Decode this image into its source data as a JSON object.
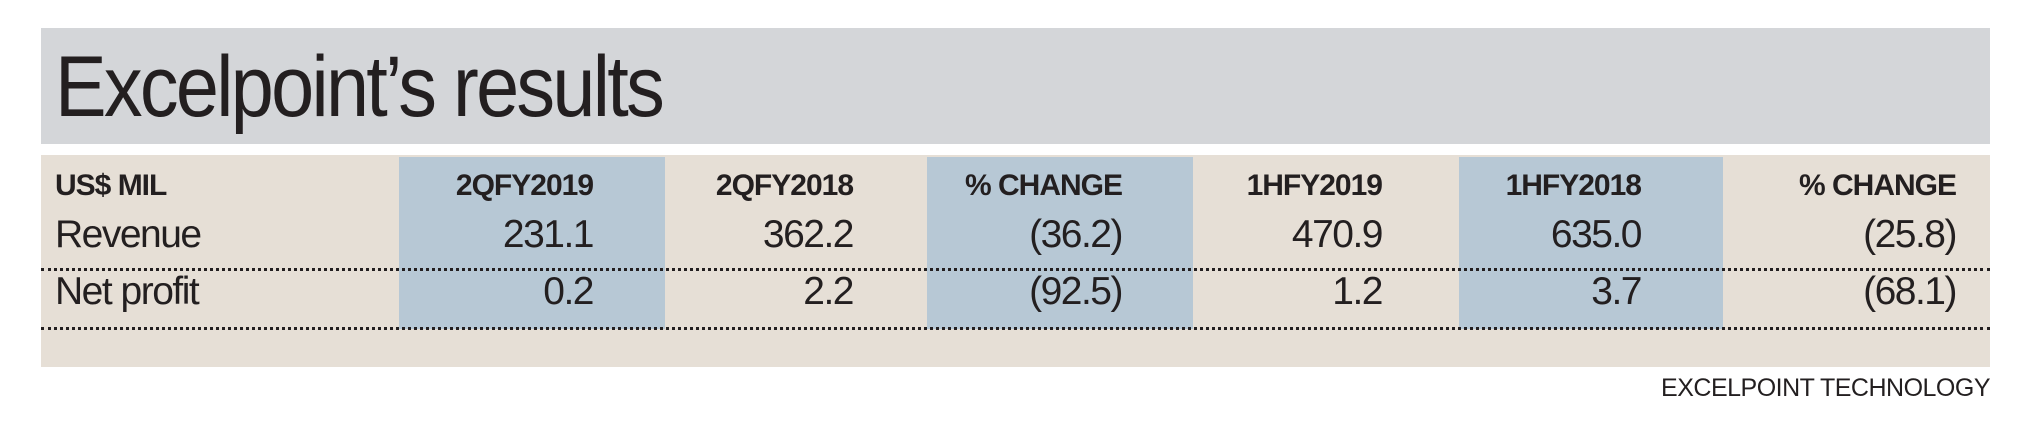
{
  "title": "Excelpoint’s results",
  "chart_data": {
    "type": "table",
    "columns": [
      "US$ MIL",
      "2QFY2019",
      "2QFY2018",
      "% CHANGE",
      "1HFY2019",
      "1HFY2018",
      "% CHANGE"
    ],
    "rows": [
      [
        "Revenue",
        "231.1",
        "362.2",
        "(36.2)",
        "470.9",
        "635.0",
        "(25.8)"
      ],
      [
        "Net profit",
        "0.2",
        "2.2",
        "(92.5)",
        "1.2",
        "3.7",
        "(68.1)"
      ]
    ]
  },
  "source": "EXCELPOINT TECHNOLOGY",
  "colors": {
    "title_bg": "#d4d6d9",
    "table_bg": "#e6dfd6",
    "highlight_col": "#b7c8d5"
  }
}
